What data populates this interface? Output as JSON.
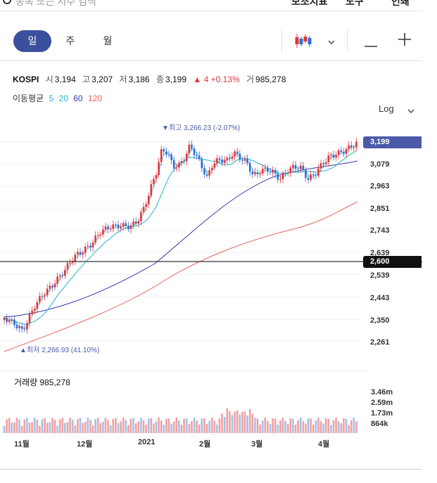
{
  "header": {
    "search_placeholder": "종목 또는 지수 검색",
    "menu_indicator": "보조지표",
    "menu_tool": "도구",
    "menu_print": "인쇄"
  },
  "period_tabs": [
    {
      "label": "일",
      "active": true
    },
    {
      "label": "주",
      "active": false
    },
    {
      "label": "월",
      "active": false
    }
  ],
  "toolbar": {
    "chart_type_icon": "candlestick-icon",
    "dropdown_icon": "chevron-down-icon",
    "zoom_out_icon": "minus-icon",
    "zoom_in_icon": "plus-icon"
  },
  "quote": {
    "name": "KOSPI",
    "open_label": "시",
    "open": "3,194",
    "high_label": "고",
    "high": "3,207",
    "low_label": "저",
    "low": "3,186",
    "close_label": "종",
    "close": "3,199",
    "change": "▲ 4 +0.13%",
    "volume_label": "거",
    "volume": "985,278"
  },
  "moving_average": {
    "label": "이동평균",
    "periods": [
      {
        "label": "5",
        "color": "#26b5c8"
      },
      {
        "label": "20",
        "color": "#26b5c8"
      },
      {
        "label": "60",
        "color": "#3c3ca8"
      },
      {
        "label": "120",
        "color": "#e8655a"
      }
    ]
  },
  "scale": {
    "label": "Log"
  },
  "annotations": {
    "high": "▼최고 3,266.23 (-2.07%)",
    "low": "▲최저 2,266.93 (41.10%)"
  },
  "price_axis": [
    "3,079",
    "2,963",
    "2,851",
    "2,743",
    "2,639",
    "2,539",
    "2,443",
    "2,350",
    "2,261"
  ],
  "current_price_tag": "3,199",
  "crosshair_price_tag": "2,600",
  "volume": {
    "title": "거래량 985,278",
    "axis": [
      "3.46m",
      "2.59m",
      "1.73m",
      "864k"
    ]
  },
  "months": [
    "11월",
    "12월",
    "2021",
    "2월",
    "3월",
    "4월"
  ],
  "colors": {
    "accent": "#3c4f9c",
    "up": "#e0353b",
    "down": "#2f6fd3",
    "ma_short": "#26b5c8",
    "ma_60": "#3c3ca8",
    "ma_120": "#e8655a",
    "vol_up": "#f2a0a0",
    "vol_down": "#9fc3ec"
  }
}
